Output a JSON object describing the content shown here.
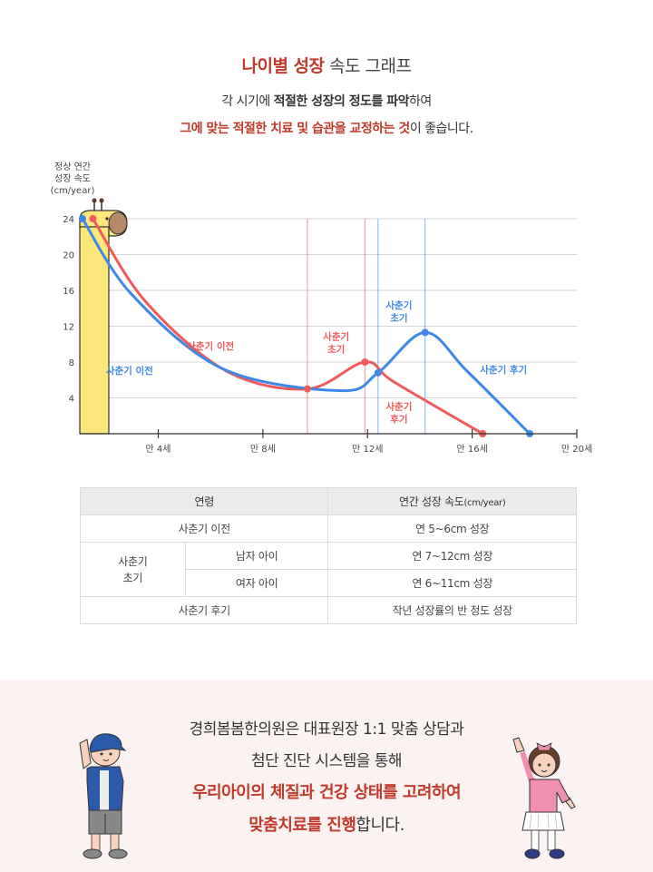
{
  "header": {
    "title_highlight": "나이별 성장",
    "title_rest": " 속도 그래프",
    "sub1_part1": "각 시기에 ",
    "sub1_bold": "적절한 성장의 정도를 파악",
    "sub1_part2": "하여",
    "sub2_red": "그에 맞는 적절한 치료 및 습관을 교정하는 것",
    "sub2_rest": "이 좋습니다."
  },
  "chart_data": {
    "type": "line",
    "ylabel": [
      "정상 연간",
      "성장 속도",
      "(cm/year)"
    ],
    "yticks": [
      4,
      8,
      12,
      16,
      20,
      24
    ],
    "ylim": [
      0,
      24
    ],
    "xticks": [
      "만 4세",
      "만 8세",
      "만 12세",
      "만 16세",
      "만 20세"
    ],
    "xlim": [
      1,
      20
    ],
    "grid": true,
    "colors": {
      "red": "#f05a5a",
      "blue": "#3f88e8",
      "giraffe": "#fbe77a"
    },
    "series": [
      {
        "name": "red",
        "color": "#f05a5a",
        "x": [
          1.5,
          3.5,
          6.6,
          9.7,
          11.9,
          13.0,
          16.4
        ],
        "y": [
          24,
          14.8,
          7.0,
          5.0,
          8.0,
          5.8,
          0
        ]
      },
      {
        "name": "blue",
        "color": "#3f88e8",
        "x": [
          1.1,
          3.0,
          6.5,
          11.0,
          12.4,
          14.2,
          15.8,
          18.2
        ],
        "y": [
          24,
          15.5,
          7.2,
          4.8,
          6.8,
          11.3,
          7.0,
          0
        ]
      }
    ],
    "markers": {
      "red": [
        [
          1.5,
          24
        ],
        [
          9.7,
          5.0
        ],
        [
          11.9,
          8.0
        ],
        [
          16.4,
          0
        ]
      ],
      "blue": [
        [
          1.1,
          24
        ],
        [
          12.4,
          6.8
        ],
        [
          14.2,
          11.3
        ],
        [
          18.2,
          0
        ]
      ]
    },
    "vlines": {
      "red": [
        9.7,
        11.9
      ],
      "blue": [
        12.4,
        14.2
      ]
    },
    "annotations": [
      {
        "text": "사춘기 이전",
        "color": "red",
        "x": 6.0,
        "y": 9.4
      },
      {
        "text": "사춘기 이전",
        "color": "blue",
        "x": 2.9,
        "y": 6.7
      },
      {
        "text": "사춘기",
        "text2": "초기",
        "color": "red",
        "x": 10.8,
        "y": 10.5
      },
      {
        "text": "사춘기",
        "text2": "초기",
        "color": "blue",
        "x": 13.2,
        "y": 14.0
      },
      {
        "text": "사춘기 후기",
        "color": "blue",
        "x": 17.2,
        "y": 6.8
      },
      {
        "text": "사춘기",
        "text2": "후기",
        "color": "red",
        "x": 13.2,
        "y": 2.7
      }
    ]
  },
  "table": {
    "headers": [
      "연령",
      "연간 성장 속도",
      "(cm/year)"
    ],
    "row1": {
      "label": "사춘기 이전",
      "value": "연 5~6cm 성장"
    },
    "row2": {
      "label_line1": "사춘기",
      "label_line2": "초기",
      "sub": "남자 아이",
      "value": "연 7~12cm 성장"
    },
    "row3": {
      "sub": "여자 아이",
      "value": "연 6~11cm 성장"
    },
    "row4": {
      "label": "사춘기 후기",
      "value": "작년 성장률의 반 정도 성장"
    }
  },
  "bottom": {
    "line1": "경희봄봄한의원은 대표원장 1:1 맞춤 상담과",
    "line2": "첨단 진단 시스템을 통해",
    "line3": "우리아이의 체질과 건강 상태를 고려하여",
    "line4_red": "맞춤치료를 진행",
    "line4_rest": "합니다."
  }
}
